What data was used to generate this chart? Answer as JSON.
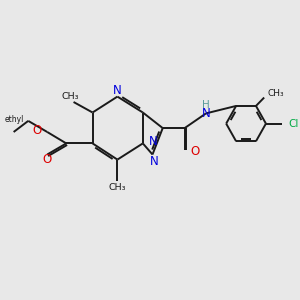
{
  "background_color": "#e8e8e8",
  "bond_color": "#1a1a1a",
  "nitrogen_color": "#0000dd",
  "oxygen_color": "#dd0000",
  "chlorine_color": "#00aa44",
  "nh_color": "#5a9a9a",
  "figsize": [
    3.0,
    3.0
  ],
  "dpi": 100,
  "xlim": [
    0,
    10
  ],
  "ylim": [
    0,
    10
  ]
}
